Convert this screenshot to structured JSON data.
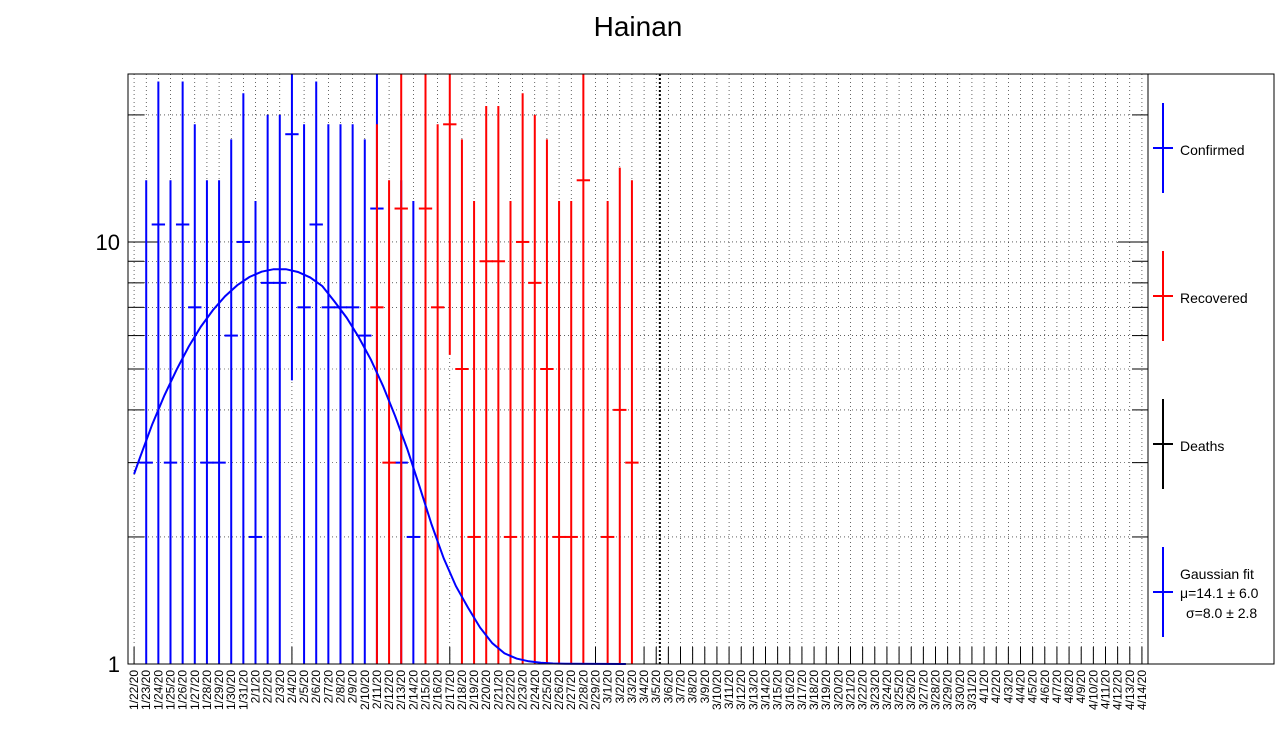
{
  "chart_data": {
    "type": "scatter",
    "title": "Hainan",
    "xlabel": "",
    "ylabel": "",
    "y_scale": "log",
    "ylim": [
      1,
      25
    ],
    "y_ticks": [
      1,
      10
    ],
    "grid": true,
    "legend_position": "right",
    "reference_line_date": "3/5/20",
    "categories": [
      "1/22/20",
      "1/23/20",
      "1/24/20",
      "1/25/20",
      "1/26/20",
      "1/27/20",
      "1/28/20",
      "1/29/20",
      "1/30/20",
      "1/31/20",
      "2/1/20",
      "2/2/20",
      "2/3/20",
      "2/4/20",
      "2/5/20",
      "2/6/20",
      "2/7/20",
      "2/8/20",
      "2/9/20",
      "2/10/20",
      "2/11/20",
      "2/12/20",
      "2/13/20",
      "2/14/20",
      "2/15/20",
      "2/16/20",
      "2/17/20",
      "2/18/20",
      "2/19/20",
      "2/20/20",
      "2/21/20",
      "2/22/20",
      "2/23/20",
      "2/24/20",
      "2/25/20",
      "2/26/20",
      "2/27/20",
      "2/28/20",
      "2/29/20",
      "3/1/20",
      "3/2/20",
      "3/3/20",
      "3/4/20",
      "3/5/20",
      "3/6/20",
      "3/7/20",
      "3/8/20",
      "3/9/20",
      "3/10/20",
      "3/11/20",
      "3/12/20",
      "3/13/20",
      "3/14/20",
      "3/15/20",
      "3/16/20",
      "3/17/20",
      "3/18/20",
      "3/19/20",
      "3/20/20",
      "3/21/20",
      "3/22/20",
      "3/23/20",
      "3/24/20",
      "3/25/20",
      "3/26/20",
      "3/27/20",
      "3/28/20",
      "3/29/20",
      "3/30/20",
      "3/31/20",
      "4/1/20",
      "4/2/20",
      "4/3/20",
      "4/4/20",
      "4/5/20",
      "4/6/20",
      "4/7/20",
      "4/8/20",
      "4/9/20",
      "4/10/20",
      "4/11/20",
      "4/12/20",
      "4/13/20",
      "4/14/20"
    ],
    "series": [
      {
        "name": "Confirmed",
        "color": "#0000ff",
        "points": [
          {
            "x": "1/23/20",
            "y": 3,
            "lo": 1,
            "hi": 14
          },
          {
            "x": "1/24/20",
            "y": 11,
            "lo": 1,
            "hi": 24
          },
          {
            "x": "1/25/20",
            "y": 3,
            "lo": 1,
            "hi": 14
          },
          {
            "x": "1/26/20",
            "y": 11,
            "lo": 1,
            "hi": 24
          },
          {
            "x": "1/27/20",
            "y": 7,
            "lo": 1,
            "hi": 19
          },
          {
            "x": "1/28/20",
            "y": 3,
            "lo": 1,
            "hi": 14
          },
          {
            "x": "1/29/20",
            "y": 3,
            "lo": 1,
            "hi": 14
          },
          {
            "x": "1/30/20",
            "y": 6,
            "lo": 1,
            "hi": 17.5
          },
          {
            "x": "1/31/20",
            "y": 10,
            "lo": 1,
            "hi": 22.5
          },
          {
            "x": "2/1/20",
            "y": 2,
            "lo": 1,
            "hi": 12.5
          },
          {
            "x": "2/2/20",
            "y": 8,
            "lo": 1,
            "hi": 20
          },
          {
            "x": "2/3/20",
            "y": 8,
            "lo": 1,
            "hi": 20
          },
          {
            "x": "2/4/20",
            "y": 18,
            "lo": 4.7,
            "hi": 25
          },
          {
            "x": "2/5/20",
            "y": 7,
            "lo": 1,
            "hi": 19
          },
          {
            "x": "2/6/20",
            "y": 11,
            "lo": 1,
            "hi": 24
          },
          {
            "x": "2/7/20",
            "y": 7,
            "lo": 1,
            "hi": 19
          },
          {
            "x": "2/8/20",
            "y": 7,
            "lo": 1,
            "hi": 19
          },
          {
            "x": "2/9/20",
            "y": 7,
            "lo": 1,
            "hi": 19
          },
          {
            "x": "2/10/20",
            "y": 6,
            "lo": 1,
            "hi": 17.5
          },
          {
            "x": "2/11/20",
            "y": 12,
            "lo": 1,
            "hi": 25
          },
          {
            "x": "2/13/20",
            "y": 3,
            "lo": 1,
            "hi": 14
          },
          {
            "x": "2/14/20",
            "y": 2,
            "lo": 1,
            "hi": 12.5
          }
        ]
      },
      {
        "name": "Recovered",
        "color": "#ff0000",
        "points": [
          {
            "x": "2/11/20",
            "y": 7,
            "lo": 1,
            "hi": 19
          },
          {
            "x": "2/12/20",
            "y": 3,
            "lo": 1,
            "hi": 14
          },
          {
            "x": "2/13/20",
            "y": 12,
            "lo": 1,
            "hi": 25
          },
          {
            "x": "2/15/20",
            "y": 12,
            "lo": 1,
            "hi": 25
          },
          {
            "x": "2/16/20",
            "y": 7,
            "lo": 1,
            "hi": 19
          },
          {
            "x": "2/17/20",
            "y": 19,
            "lo": 5.4,
            "hi": 25
          },
          {
            "x": "2/18/20",
            "y": 5,
            "lo": 1,
            "hi": 17.5
          },
          {
            "x": "2/19/20",
            "y": 2,
            "lo": 1,
            "hi": 12.5
          },
          {
            "x": "2/20/20",
            "y": 9,
            "lo": 1,
            "hi": 21
          },
          {
            "x": "2/21/20",
            "y": 9,
            "lo": 1,
            "hi": 21
          },
          {
            "x": "2/22/20",
            "y": 2,
            "lo": 1,
            "hi": 12.5
          },
          {
            "x": "2/23/20",
            "y": 10,
            "lo": 1,
            "hi": 22.5
          },
          {
            "x": "2/24/20",
            "y": 8,
            "lo": 1,
            "hi": 20
          },
          {
            "x": "2/25/20",
            "y": 5,
            "lo": 1,
            "hi": 17.5
          },
          {
            "x": "2/26/20",
            "y": 2,
            "lo": 1,
            "hi": 12.5
          },
          {
            "x": "2/27/20",
            "y": 2,
            "lo": 1,
            "hi": 12.5
          },
          {
            "x": "2/28/20",
            "y": 14,
            "lo": 1,
            "hi": 25
          },
          {
            "x": "3/1/20",
            "y": 2,
            "lo": 1,
            "hi": 12.5
          },
          {
            "x": "3/2/20",
            "y": 4,
            "lo": 1,
            "hi": 15
          },
          {
            "x": "3/3/20",
            "y": 3,
            "lo": 1,
            "hi": 14
          }
        ]
      },
      {
        "name": "Deaths",
        "color": "#000000",
        "points": []
      }
    ],
    "fit": {
      "name": "Gaussian fit",
      "color": "#0000ff",
      "mu_label": "μ=14.1 ± 6.0",
      "sigma_label": "σ=8.0 ± 2.8",
      "curve": [
        {
          "x": 0.5,
          "y": 2.82
        },
        {
          "x": 1,
          "y": 3.09
        },
        {
          "x": 2,
          "y": 3.7
        },
        {
          "x": 3,
          "y": 4.33
        },
        {
          "x": 4,
          "y": 4.98
        },
        {
          "x": 5,
          "y": 5.65
        },
        {
          "x": 6,
          "y": 6.3
        },
        {
          "x": 7,
          "y": 6.9
        },
        {
          "x": 8,
          "y": 7.44
        },
        {
          "x": 9,
          "y": 7.9
        },
        {
          "x": 10,
          "y": 8.26
        },
        {
          "x": 11,
          "y": 8.5
        },
        {
          "x": 12,
          "y": 8.62
        },
        {
          "x": 13,
          "y": 8.62
        },
        {
          "x": 14,
          "y": 8.49
        },
        {
          "x": 15,
          "y": 8.24
        },
        {
          "x": 16,
          "y": 7.86
        },
        {
          "x": 17,
          "y": 7.23
        },
        {
          "x": 18,
          "y": 6.62
        },
        {
          "x": 19,
          "y": 5.95
        },
        {
          "x": 20,
          "y": 5.26
        },
        {
          "x": 21,
          "y": 4.56
        },
        {
          "x": 22,
          "y": 3.87
        },
        {
          "x": 23,
          "y": 3.23
        },
        {
          "x": 24,
          "y": 2.64
        },
        {
          "x": 25,
          "y": 2.14
        },
        {
          "x": 26,
          "y": 1.78
        },
        {
          "x": 27,
          "y": 1.53
        },
        {
          "x": 28,
          "y": 1.36
        },
        {
          "x": 29,
          "y": 1.22
        },
        {
          "x": 30,
          "y": 1.12
        },
        {
          "x": 31,
          "y": 1.06
        },
        {
          "x": 32,
          "y": 1.03
        },
        {
          "x": 33,
          "y": 1.015
        },
        {
          "x": 34,
          "y": 1.007
        },
        {
          "x": 35,
          "y": 1.003
        },
        {
          "x": 36,
          "y": 1.001
        },
        {
          "x": 41,
          "y": 1.0
        }
      ]
    }
  }
}
